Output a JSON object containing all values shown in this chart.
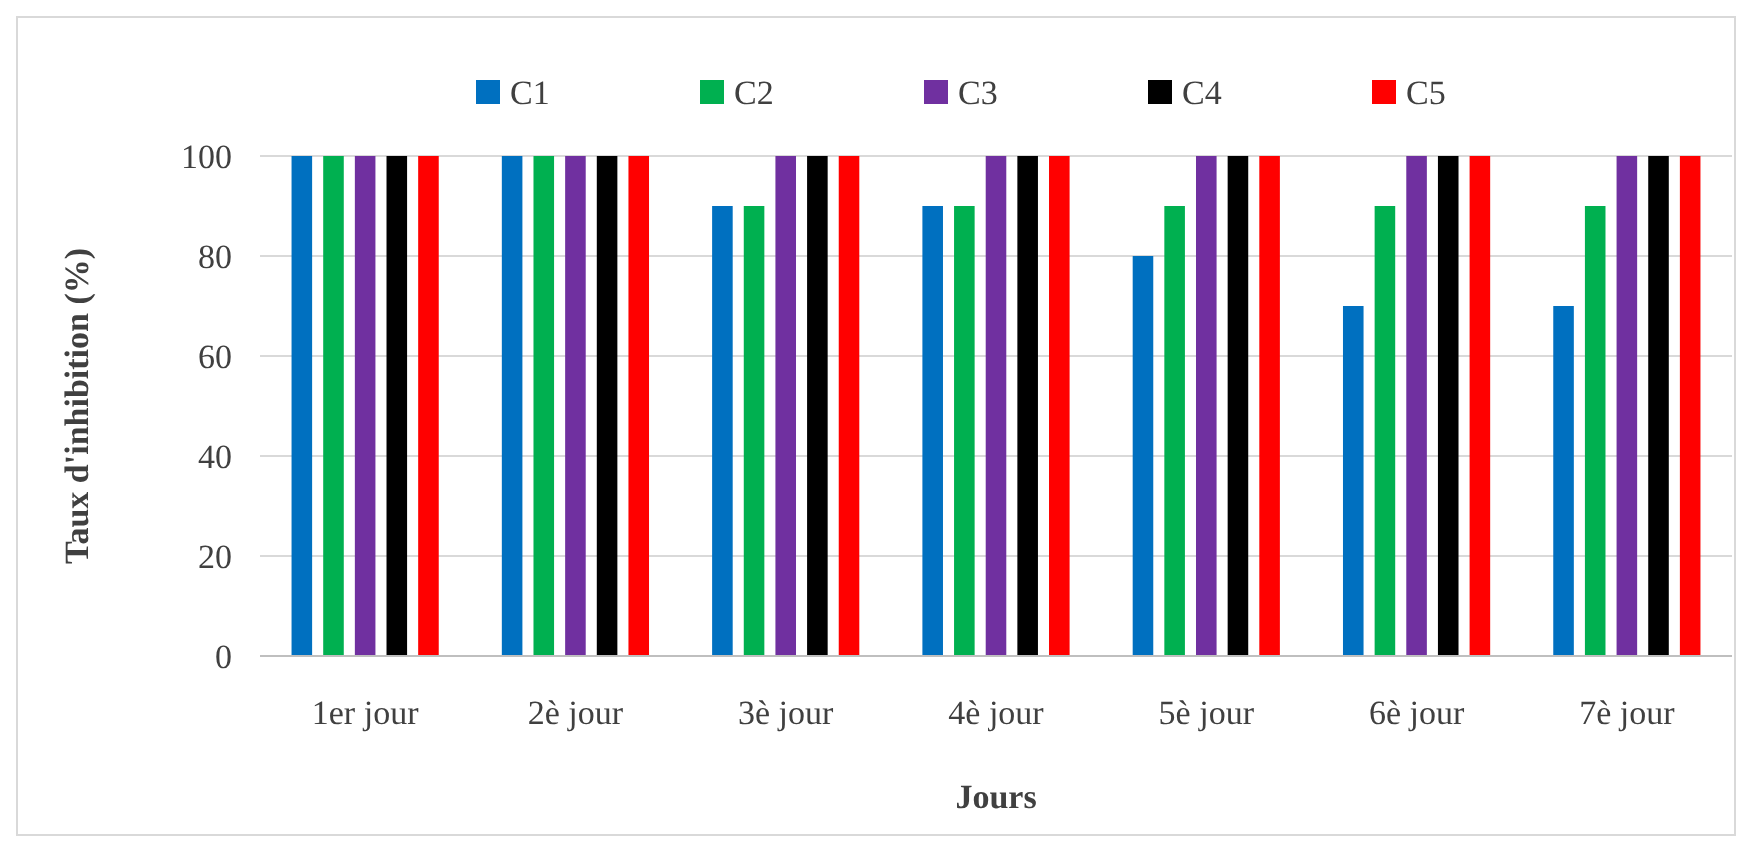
{
  "chart_data": {
    "type": "bar",
    "xlabel": "Jours",
    "ylabel": "Taux d'inhibition (%)",
    "categories": [
      "1er jour",
      "2è jour",
      "3è jour",
      "4è jour",
      "5è jour",
      "6è jour",
      "7è jour"
    ],
    "series": [
      {
        "name": "C1",
        "color": "#0070c0",
        "values": [
          100,
          100,
          90,
          90,
          80,
          70,
          70
        ]
      },
      {
        "name": "C2",
        "color": "#00b050",
        "values": [
          100,
          100,
          90,
          90,
          90,
          90,
          90
        ]
      },
      {
        "name": "C3",
        "color": "#7030a0",
        "values": [
          100,
          100,
          100,
          100,
          100,
          100,
          100
        ]
      },
      {
        "name": "C4",
        "color": "#000000",
        "values": [
          100,
          100,
          100,
          100,
          100,
          100,
          100
        ]
      },
      {
        "name": "C5",
        "color": "#ff0000",
        "values": [
          100,
          100,
          100,
          100,
          100,
          100,
          100
        ]
      }
    ],
    "ylim": [
      0,
      100
    ],
    "yticks": [
      0,
      20,
      40,
      60,
      80,
      100
    ],
    "grid": "y",
    "legend": "top"
  }
}
